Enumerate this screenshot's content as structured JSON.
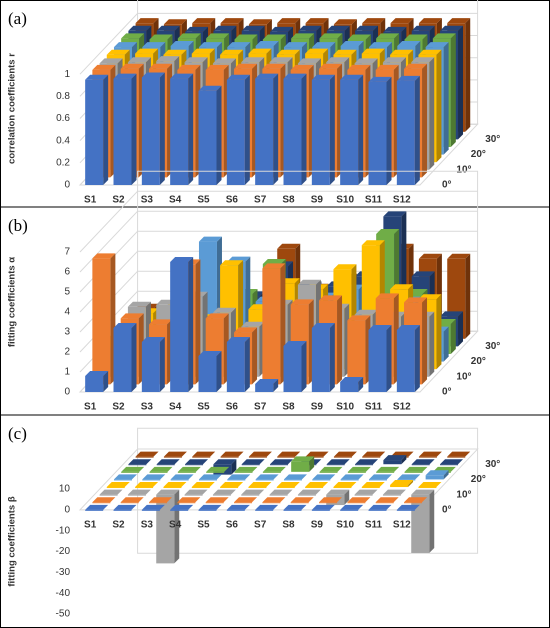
{
  "chart_data": [
    {
      "type": "bar3d",
      "label": "(a)",
      "y_label": "correlation coefficients r",
      "categories": [
        "S1",
        "S2",
        "S3",
        "S4",
        "S5",
        "S6",
        "S7",
        "S8",
        "S9",
        "S10",
        "S11",
        "S12"
      ],
      "depth_categories": [
        "0°",
        null,
        "10°",
        null,
        "20°",
        null,
        "30°",
        null
      ],
      "ylim": [
        0,
        1.2
      ],
      "yticks": [
        0,
        0.2,
        0.4,
        0.6,
        0.8,
        1
      ],
      "grid": true,
      "series": [
        {
          "color": "#4472c4",
          "values": [
            0.95,
            0.96,
            0.97,
            0.96,
            0.85,
            0.95,
            0.96,
            0.96,
            0.95,
            0.95,
            0.93,
            0.94
          ]
        },
        {
          "color": "#ed7d31",
          "values": [
            0.97,
            0.98,
            0.98,
            0.97,
            0.97,
            0.98,
            0.98,
            0.97,
            0.98,
            0.97,
            0.97,
            0.98
          ]
        },
        {
          "color": "#a5a5a5",
          "values": [
            0.96,
            0.97,
            0.98,
            0.97,
            0.96,
            0.97,
            0.97,
            0.96,
            0.97,
            0.96,
            0.97,
            0.97
          ]
        },
        {
          "color": "#ffc000",
          "values": [
            0.97,
            0.98,
            0.97,
            0.98,
            0.97,
            0.98,
            0.97,
            0.98,
            0.97,
            0.98,
            0.97,
            0.97
          ]
        },
        {
          "color": "#5b9bd5",
          "values": [
            0.97,
            0.97,
            0.98,
            0.97,
            0.97,
            0.98,
            0.97,
            0.97,
            0.98,
            0.97,
            0.98,
            0.97
          ]
        },
        {
          "color": "#70ad47",
          "values": [
            0.98,
            0.97,
            0.98,
            0.98,
            0.97,
            0.97,
            0.98,
            0.98,
            0.97,
            0.98,
            0.97,
            0.98
          ]
        },
        {
          "color": "#264478",
          "values": [
            0.98,
            0.98,
            0.97,
            0.98,
            0.98,
            0.97,
            0.98,
            0.98,
            0.98,
            0.97,
            0.98,
            0.98
          ]
        },
        {
          "color": "#9e480e",
          "values": [
            0.98,
            0.97,
            0.98,
            0.98,
            0.97,
            0.98,
            0.98,
            0.97,
            0.98,
            0.98,
            0.98,
            0.98
          ]
        }
      ]
    },
    {
      "type": "bar3d",
      "label": "(b)",
      "y_label": "fitting coefficients α",
      "categories": [
        "S1",
        "S2",
        "S3",
        "S4",
        "S5",
        "S6",
        "S7",
        "S8",
        "S9",
        "S10",
        "S11",
        "S12"
      ],
      "depth_categories": [
        "0°",
        null,
        "10°",
        null,
        "20°",
        null,
        "30°",
        null
      ],
      "ylim": [
        0,
        8
      ],
      "yticks": [
        0,
        1,
        2,
        3,
        4,
        5,
        6,
        7
      ],
      "grid": true,
      "series": [
        {
          "color": "#4472c4",
          "values": [
            0.8,
            3.2,
            2.5,
            6.5,
            1.8,
            2.5,
            0.4,
            2.3,
            3.2,
            0.5,
            3.1,
            3.1
          ]
        },
        {
          "color": "#ed7d31",
          "values": [
            6.3,
            3.3,
            3.0,
            6.0,
            3.3,
            2.6,
            5.8,
            4.0,
            4.2,
            3.2,
            4.3,
            4.1
          ]
        },
        {
          "color": "#a5a5a5",
          "values": [
            1.2,
            3.5,
            3.6,
            4.0,
            3.2,
            2.5,
            3.6,
            4.6,
            3.4,
            3.1,
            3.0,
            3.0
          ]
        },
        {
          "color": "#ffc000",
          "values": [
            1.5,
            2.8,
            3.0,
            2.5,
            5.2,
            3.0,
            4.3,
            4.0,
            5.0,
            6.2,
            4.0,
            3.5
          ]
        },
        {
          "color": "#5b9bd5",
          "values": [
            1.2,
            2.0,
            2.5,
            6.0,
            5.0,
            3.0,
            3.5,
            3.2,
            3.6,
            2.0,
            3.0,
            1.5
          ]
        },
        {
          "color": "#70ad47",
          "values": [
            1.0,
            2.0,
            2.0,
            2.0,
            3.0,
            4.5,
            3.0,
            2.5,
            2.5,
            6.0,
            3.0,
            1.5
          ]
        },
        {
          "color": "#264478",
          "values": [
            1.0,
            1.5,
            2.0,
            2.0,
            2.5,
            4.0,
            3.0,
            3.0,
            3.5,
            6.5,
            3.5,
            1.5
          ]
        },
        {
          "color": "#9e480e",
          "values": [
            1.5,
            1.5,
            2.0,
            2.5,
            2.0,
            4.5,
            2.5,
            3.0,
            4.0,
            4.5,
            4.0,
            4.0
          ]
        }
      ]
    },
    {
      "type": "bar3d",
      "label": "(c)",
      "y_label": "fitting coefficients β",
      "categories": [
        "S1",
        "S2",
        "S3",
        "S4",
        "S5",
        "S6",
        "S7",
        "S8",
        "S9",
        "S10",
        "S11",
        "S12"
      ],
      "depth_categories": [
        "0°",
        null,
        "10°",
        null,
        "20°",
        null,
        "30°",
        null
      ],
      "ylim": [
        -50,
        10
      ],
      "yticks": [
        -50,
        -40,
        -30,
        -20,
        -10,
        0,
        10
      ],
      "grid": false,
      "series": [
        {
          "color": "#4472c4",
          "values": [
            0,
            0,
            0,
            0,
            0,
            0,
            0,
            0,
            0,
            0,
            0,
            0
          ]
        },
        {
          "color": "#ed7d31",
          "values": [
            0,
            0,
            0,
            0,
            0,
            0,
            0,
            0,
            0,
            0,
            0,
            0
          ]
        },
        {
          "color": "#a5a5a5",
          "values": [
            0,
            0,
            -33,
            0,
            0,
            0,
            0,
            0,
            -5,
            0,
            0,
            -28
          ]
        },
        {
          "color": "#ffc000",
          "values": [
            0,
            0,
            0,
            0,
            0,
            0,
            0,
            0,
            0,
            0,
            1,
            0
          ]
        },
        {
          "color": "#5b9bd5",
          "values": [
            0,
            0,
            0,
            0,
            0,
            0,
            0,
            0,
            0,
            0,
            0,
            2
          ]
        },
        {
          "color": "#70ad47",
          "values": [
            0,
            0,
            0,
            0,
            0,
            0,
            5,
            0,
            0,
            0,
            0,
            0
          ]
        },
        {
          "color": "#264478",
          "values": [
            0,
            0,
            0,
            -5,
            0,
            0,
            0,
            0,
            0,
            2,
            0,
            0
          ]
        },
        {
          "color": "#9e480e",
          "values": [
            0,
            0,
            0,
            0,
            0,
            0,
            0,
            0,
            0,
            0,
            0,
            0
          ]
        }
      ]
    }
  ]
}
